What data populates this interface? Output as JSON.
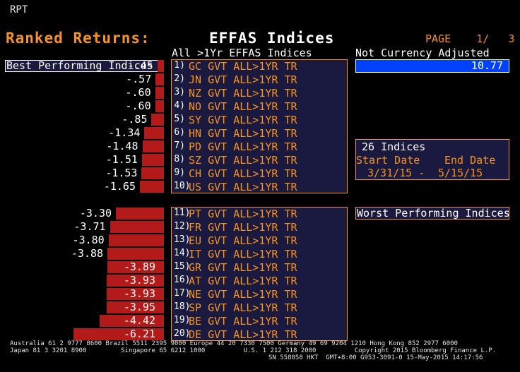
{
  "header": {
    "rpt": "RPT",
    "title_orange": "Ranked Returns:",
    "title_white": "EFFAS Indices",
    "page": "PAGE    1/   3",
    "list_header": "All >1Yr EFFAS Indices",
    "mode_header": "Not Currency Adjusted",
    "best_label": "Best Performing Indices",
    "worst_label": "Worst Performing Indices",
    "selected_value": "10.77"
  },
  "info": {
    "count": "26 Indices",
    "start_label": "Start Date",
    "end_label": "End Date",
    "start_date": "3/31/15 -",
    "end_date": "5/15/15"
  },
  "best": [
    {
      "num": "1)",
      "name": "GC GVT ALL>1YR TR",
      "label": "-.45",
      "value": -0.45
    },
    {
      "num": "2)",
      "name": "JN GVT ALL>1YR TR",
      "label": "-.57",
      "value": -0.57
    },
    {
      "num": "3)",
      "name": "NZ GVT ALL>1YR TR",
      "label": "-.60",
      "value": -0.6
    },
    {
      "num": "4)",
      "name": "NO GVT ALL>1YR TR",
      "label": "-.60",
      "value": -0.6
    },
    {
      "num": "5)",
      "name": "SY GVT ALL>1YR TR",
      "label": "-.85",
      "value": -0.85
    },
    {
      "num": "6)",
      "name": "HN GVT ALL>1YR TR",
      "label": "-1.34",
      "value": -1.34
    },
    {
      "num": "7)",
      "name": "PD GVT ALL>1YR TR",
      "label": "-1.48",
      "value": -1.48
    },
    {
      "num": "8)",
      "name": "SZ GVT ALL>1YR TR",
      "label": "-1.51",
      "value": -1.51
    },
    {
      "num": "9)",
      "name": "CH GVT ALL>1YR TR",
      "label": "-1.53",
      "value": -1.53
    },
    {
      "num": "10)",
      "name": "US GVT ALL>1YR TR",
      "label": "-1.65",
      "value": -1.65
    }
  ],
  "worst": [
    {
      "num": "11)",
      "name": "PT GVT ALL>1YR TR",
      "label": "-3.30",
      "value": -3.3
    },
    {
      "num": "12)",
      "name": "FR GVT ALL>1YR TR",
      "label": "-3.71",
      "value": -3.71
    },
    {
      "num": "13)",
      "name": "EU GVT ALL>1YR TR",
      "label": "-3.80",
      "value": -3.8
    },
    {
      "num": "14)",
      "name": "IT GVT ALL>1YR TR",
      "label": "-3.88",
      "value": -3.88
    },
    {
      "num": "15)",
      "name": "GR GVT ALL>1YR TR",
      "label": "-3.89",
      "value": -3.89
    },
    {
      "num": "16)",
      "name": "AT GVT ALL>1YR TR",
      "label": "-3.93",
      "value": -3.93
    },
    {
      "num": "17)",
      "name": "NE GVT ALL>1YR TR",
      "label": "-3.93",
      "value": -3.93
    },
    {
      "num": "18)",
      "name": "SP GVT ALL>1YR TR",
      "label": "-3.95",
      "value": -3.95
    },
    {
      "num": "19)",
      "name": "BE GVT ALL>1YR TR",
      "label": "-4.42",
      "value": -4.42
    },
    {
      "num": "20)",
      "name": "DE GVT ALL>1YR TR",
      "label": "-6.21",
      "value": -6.21
    }
  ],
  "footer": {
    "line1": "Australia 61 2 9777 8600 Brazil 5511 2395 9000 Europe 44 20 7330 7500 Germany 49 69 9204 1210 Hong Kong 852 2977 6000",
    "line2": "Japan 81 3 3201 8900         Singapore 65 6212 1000          U.S. 1 212 318 2000          Copyright 2015 Bloomberg Finance L.P.",
    "line3": "SN 558058 HKT  GMT+8:00 G953-3091-0 15-May-2015 14:17:56"
  },
  "colors": {
    "orange": "#f7931e",
    "bar": "#b31b1b",
    "highlight": "#0040ff",
    "panel": "#1a1a40"
  }
}
